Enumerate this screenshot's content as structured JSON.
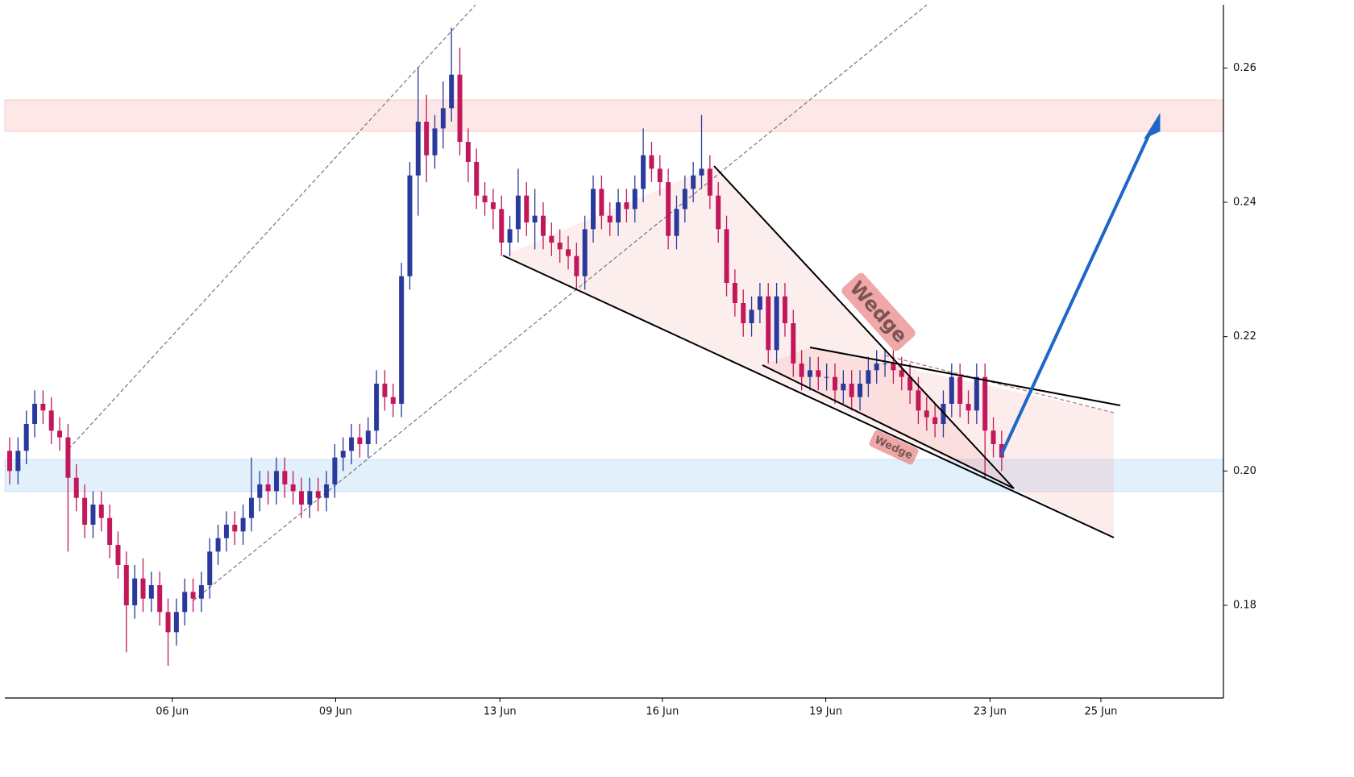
{
  "chart_data": {
    "type": "candlestick",
    "up_color": "#2a3a9c",
    "down_color": "#c2185b",
    "open": [
      0.203,
      0.2,
      0.203,
      0.207,
      0.21,
      0.209,
      0.206,
      0.205,
      0.199,
      0.196,
      0.192,
      0.195,
      0.193,
      0.189,
      0.186,
      0.18,
      0.184,
      0.181,
      0.183,
      0.179,
      0.176,
      0.179,
      0.182,
      0.181,
      0.183,
      0.188,
      0.19,
      0.192,
      0.191,
      0.193,
      0.196,
      0.198,
      0.197,
      0.2,
      0.198,
      0.197,
      0.195,
      0.197,
      0.196,
      0.198,
      0.202,
      0.203,
      0.205,
      0.204,
      0.206,
      0.213,
      0.211,
      0.21,
      0.229,
      0.244,
      0.252,
      0.247,
      0.251,
      0.254,
      0.259,
      0.249,
      0.246,
      0.241,
      0.24,
      0.239,
      0.234,
      0.236,
      0.241,
      0.237,
      0.238,
      0.235,
      0.234,
      0.233,
      0.232,
      0.229,
      0.236,
      0.242,
      0.238,
      0.237,
      0.24,
      0.239,
      0.242,
      0.247,
      0.245,
      0.243,
      0.235,
      0.239,
      0.242,
      0.244,
      0.245,
      0.241,
      0.236,
      0.228,
      0.225,
      0.222,
      0.224,
      0.226,
      0.218,
      0.226,
      0.222,
      0.216,
      0.214,
      0.215,
      0.214,
      0.214,
      0.212,
      0.213,
      0.211,
      0.213,
      0.215,
      0.216,
      0.216,
      0.215,
      0.214,
      0.212,
      0.209,
      0.208,
      0.207,
      0.21,
      0.214,
      0.21,
      0.209,
      0.214,
      0.206,
      0.204
    ],
    "high": [
      0.205,
      0.205,
      0.209,
      0.212,
      0.212,
      0.211,
      0.208,
      0.207,
      0.201,
      0.198,
      0.197,
      0.197,
      0.195,
      0.191,
      0.188,
      0.186,
      0.187,
      0.185,
      0.185,
      0.181,
      0.181,
      0.184,
      0.184,
      0.185,
      0.19,
      0.192,
      0.194,
      0.194,
      0.195,
      0.202,
      0.2,
      0.2,
      0.202,
      0.202,
      0.2,
      0.199,
      0.199,
      0.199,
      0.2,
      0.204,
      0.205,
      0.207,
      0.207,
      0.208,
      0.215,
      0.215,
      0.213,
      0.231,
      0.246,
      0.26,
      0.256,
      0.253,
      0.258,
      0.266,
      0.263,
      0.251,
      0.248,
      0.243,
      0.242,
      0.241,
      0.238,
      0.245,
      0.243,
      0.242,
      0.24,
      0.237,
      0.236,
      0.235,
      0.234,
      0.238,
      0.244,
      0.244,
      0.24,
      0.242,
      0.242,
      0.244,
      0.251,
      0.249,
      0.247,
      0.245,
      0.241,
      0.244,
      0.246,
      0.253,
      0.247,
      0.243,
      0.238,
      0.23,
      0.227,
      0.226,
      0.228,
      0.228,
      0.228,
      0.228,
      0.224,
      0.218,
      0.217,
      0.217,
      0.216,
      0.216,
      0.215,
      0.215,
      0.215,
      0.217,
      0.218,
      0.218,
      0.218,
      0.217,
      0.216,
      0.214,
      0.211,
      0.21,
      0.212,
      0.216,
      0.216,
      0.212,
      0.216,
      0.216,
      0.208,
      0.206
    ],
    "low": [
      0.198,
      0.198,
      0.201,
      0.205,
      0.207,
      0.204,
      0.203,
      0.188,
      0.194,
      0.19,
      0.19,
      0.191,
      0.187,
      0.184,
      0.173,
      0.178,
      0.179,
      0.179,
      0.177,
      0.171,
      0.174,
      0.177,
      0.179,
      0.179,
      0.181,
      0.186,
      0.188,
      0.189,
      0.189,
      0.191,
      0.194,
      0.195,
      0.195,
      0.196,
      0.195,
      0.193,
      0.193,
      0.194,
      0.194,
      0.196,
      0.2,
      0.201,
      0.202,
      0.202,
      0.204,
      0.209,
      0.208,
      0.208,
      0.227,
      0.238,
      0.243,
      0.245,
      0.248,
      0.252,
      0.247,
      0.243,
      0.239,
      0.238,
      0.236,
      0.232,
      0.232,
      0.234,
      0.235,
      0.233,
      0.233,
      0.232,
      0.231,
      0.23,
      0.227,
      0.227,
      0.234,
      0.236,
      0.235,
      0.235,
      0.237,
      0.237,
      0.24,
      0.243,
      0.241,
      0.233,
      0.233,
      0.237,
      0.24,
      0.242,
      0.239,
      0.234,
      0.226,
      0.223,
      0.22,
      0.22,
      0.222,
      0.216,
      0.216,
      0.22,
      0.214,
      0.212,
      0.212,
      0.212,
      0.212,
      0.21,
      0.21,
      0.209,
      0.209,
      0.211,
      0.213,
      0.214,
      0.213,
      0.212,
      0.21,
      0.207,
      0.206,
      0.205,
      0.205,
      0.208,
      0.208,
      0.207,
      0.207,
      0.199,
      0.202,
      0.2
    ],
    "close": [
      0.2,
      0.203,
      0.207,
      0.21,
      0.209,
      0.206,
      0.205,
      0.199,
      0.196,
      0.192,
      0.195,
      0.193,
      0.189,
      0.186,
      0.18,
      0.184,
      0.181,
      0.183,
      0.179,
      0.176,
      0.179,
      0.182,
      0.181,
      0.183,
      0.188,
      0.19,
      0.192,
      0.191,
      0.193,
      0.196,
      0.198,
      0.197,
      0.2,
      0.198,
      0.197,
      0.195,
      0.197,
      0.196,
      0.198,
      0.202,
      0.203,
      0.205,
      0.204,
      0.206,
      0.213,
      0.211,
      0.21,
      0.229,
      0.244,
      0.252,
      0.247,
      0.251,
      0.254,
      0.259,
      0.249,
      0.246,
      0.241,
      0.24,
      0.239,
      0.234,
      0.236,
      0.241,
      0.237,
      0.238,
      0.235,
      0.234,
      0.233,
      0.232,
      0.229,
      0.236,
      0.242,
      0.238,
      0.237,
      0.24,
      0.239,
      0.242,
      0.247,
      0.245,
      0.243,
      0.235,
      0.239,
      0.242,
      0.244,
      0.245,
      0.241,
      0.236,
      0.228,
      0.225,
      0.222,
      0.224,
      0.226,
      0.218,
      0.226,
      0.222,
      0.216,
      0.214,
      0.215,
      0.214,
      0.214,
      0.212,
      0.213,
      0.211,
      0.213,
      0.215,
      0.216,
      0.216,
      0.215,
      0.214,
      0.212,
      0.209,
      0.208,
      0.207,
      0.21,
      0.214,
      0.21,
      0.209,
      0.214,
      0.206,
      0.204,
      0.202
    ],
    "xlim": [
      -0.58,
      145.6
    ],
    "xticks": [
      {
        "value": 19.5,
        "label": "06 Jun"
      },
      {
        "value": 39.1,
        "label": "09 Jun"
      },
      {
        "value": 58.8,
        "label": "13 Jun"
      },
      {
        "value": 78.3,
        "label": "16 Jun"
      },
      {
        "value": 97.9,
        "label": "19 Jun"
      },
      {
        "value": 117.6,
        "label": "23 Jun"
      },
      {
        "value": 130.9,
        "label": "25 Jun"
      }
    ],
    "ylim": [
      0.1662,
      0.2694
    ],
    "yticks": [
      0.18,
      {
        "value": 0.2,
        "label": "0.20"
      },
      0.22,
      0.24,
      0.26
    ],
    "annotations": [
      "Wedge",
      "Wedge"
    ]
  }
}
